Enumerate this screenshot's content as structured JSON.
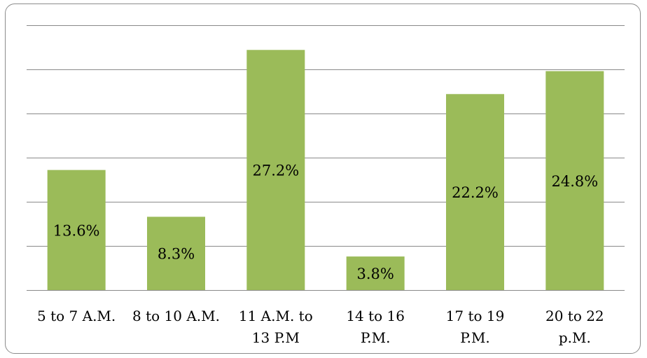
{
  "chart_data": {
    "type": "bar",
    "categories": [
      [
        "5 to 7 A.M."
      ],
      [
        "8 to 10 A.M."
      ],
      [
        "11 A.M. to",
        "13 P.M"
      ],
      [
        "14 to 16",
        "P.M."
      ],
      [
        "17 to 19",
        "P.M."
      ],
      [
        "20 to 22",
        "p.M."
      ]
    ],
    "values": [
      13.6,
      8.3,
      27.2,
      3.8,
      22.2,
      24.8
    ],
    "data_labels": [
      "13.6%",
      "8.3%",
      "27.2%",
      "3.8%",
      "22.2%",
      "24.8%"
    ],
    "ylim": [
      0,
      30
    ],
    "ytick_step": 5,
    "grid": true,
    "legend": "none",
    "title": "",
    "xlabel": "",
    "ylabel": "",
    "bar_color": "#9bbb59",
    "grid_color": "#8a8a8a"
  }
}
